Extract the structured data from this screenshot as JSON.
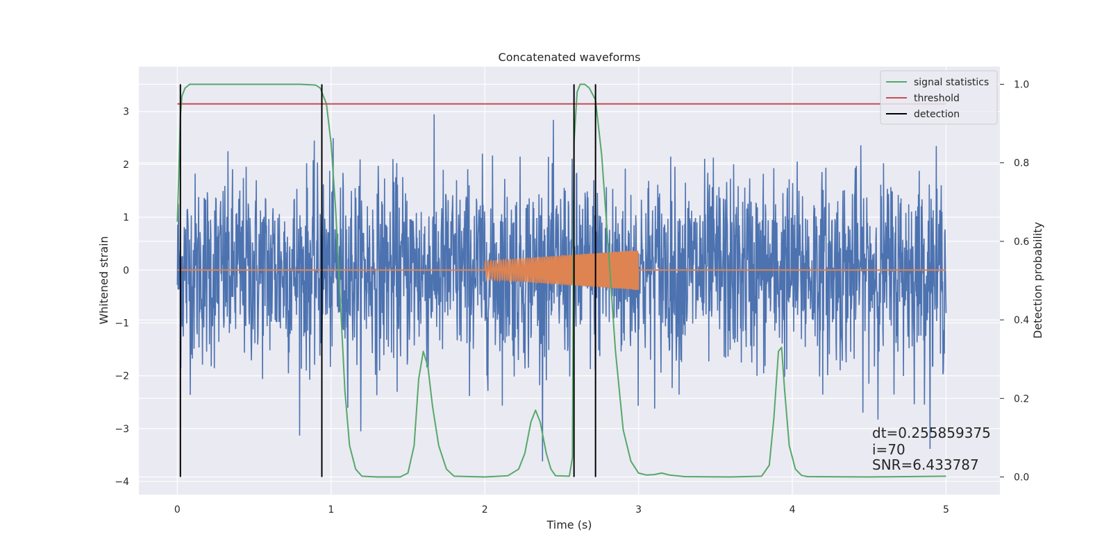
{
  "chart_data": {
    "type": "line",
    "title": "Concatenated waveforms",
    "xlabel": "Time (s)",
    "ylabel": "Whitened strain",
    "ylabel_right": "Detection probability",
    "xlim": [
      -0.25,
      5.35
    ],
    "ylim": [
      -4.25,
      3.85
    ],
    "ylim_right": [
      -0.045,
      1.045
    ],
    "x_ticks": [
      0,
      1,
      2,
      3,
      4,
      5
    ],
    "x_tick_labels": [
      "0",
      "1",
      "2",
      "3",
      "4",
      "5"
    ],
    "y_ticks": [
      -4,
      -3,
      -2,
      -1,
      0,
      1,
      2,
      3
    ],
    "y_tick_labels": [
      "−4",
      "−3",
      "−2",
      "−1",
      "0",
      "1",
      "2",
      "3"
    ],
    "y_right_ticks": [
      0.0,
      0.2,
      0.4,
      0.6,
      0.8,
      1.0
    ],
    "y_right_tick_labels": [
      "0.0",
      "0.2",
      "0.4",
      "0.6",
      "0.8",
      "1.0"
    ],
    "grid": true,
    "legend_position": "top-right",
    "background": "#eaeaf2",
    "series": [
      {
        "name": "",
        "axis": "left",
        "color": "#4c72b0",
        "kind": "noise",
        "x_range": [
          0,
          5
        ],
        "std": 0.9,
        "min": -3.9,
        "max": 3.3
      },
      {
        "name": "",
        "axis": "left",
        "color": "#dd8452",
        "kind": "chirp",
        "x_range": [
          2.0,
          3.0
        ],
        "amplitude_start": 0.17,
        "amplitude_end": 0.38,
        "baseline": 0
      },
      {
        "name": "signal statistics",
        "axis": "right",
        "color": "#55a868",
        "x": [
          0.0,
          0.01,
          0.02,
          0.03,
          0.05,
          0.08,
          0.12,
          0.2,
          0.4,
          0.6,
          0.8,
          0.9,
          0.93,
          0.97,
          1.0,
          1.03,
          1.06,
          1.09,
          1.12,
          1.16,
          1.2,
          1.3,
          1.45,
          1.5,
          1.54,
          1.57,
          1.6,
          1.63,
          1.66,
          1.7,
          1.75,
          1.8,
          2.0,
          2.15,
          2.22,
          2.26,
          2.3,
          2.33,
          2.36,
          2.4,
          2.43,
          2.46,
          2.55,
          2.57,
          2.58,
          2.6,
          2.62,
          2.65,
          2.68,
          2.72,
          2.76,
          2.8,
          2.85,
          2.9,
          2.95,
          3.0,
          3.05,
          3.1,
          3.15,
          3.2,
          3.3,
          3.6,
          3.8,
          3.85,
          3.88,
          3.91,
          3.93,
          3.95,
          3.98,
          4.02,
          4.06,
          4.1,
          4.5,
          5.0
        ],
        "values": [
          0.65,
          0.78,
          0.92,
          0.97,
          0.99,
          1.0,
          1.0,
          1.0,
          1.0,
          1.0,
          1.0,
          0.998,
          0.99,
          0.95,
          0.85,
          0.68,
          0.45,
          0.22,
          0.08,
          0.02,
          0.002,
          0.0,
          0.0,
          0.01,
          0.08,
          0.25,
          0.32,
          0.28,
          0.18,
          0.08,
          0.02,
          0.002,
          0.0,
          0.003,
          0.02,
          0.06,
          0.14,
          0.17,
          0.14,
          0.06,
          0.02,
          0.003,
          0.002,
          0.05,
          0.85,
          0.98,
          1.0,
          1.0,
          0.99,
          0.96,
          0.82,
          0.6,
          0.32,
          0.12,
          0.04,
          0.01,
          0.005,
          0.006,
          0.01,
          0.005,
          0.001,
          0.0,
          0.002,
          0.03,
          0.15,
          0.32,
          0.33,
          0.22,
          0.08,
          0.02,
          0.004,
          0.001,
          0.0,
          0.002
        ]
      },
      {
        "name": "threshold",
        "axis": "right",
        "color": "#c44e52",
        "x": [
          0,
          5
        ],
        "values": [
          0.95,
          0.95
        ]
      },
      {
        "name": "detection",
        "axis": "right",
        "color": "#000000",
        "kind": "vlines",
        "x": [
          0.02,
          0.94,
          2.58,
          2.72
        ],
        "range": [
          0,
          1
        ]
      }
    ],
    "annotations": [
      {
        "text": "dt=0.255859375"
      },
      {
        "text": " i=70"
      },
      {
        "text": "SNR=6.433787"
      }
    ]
  }
}
